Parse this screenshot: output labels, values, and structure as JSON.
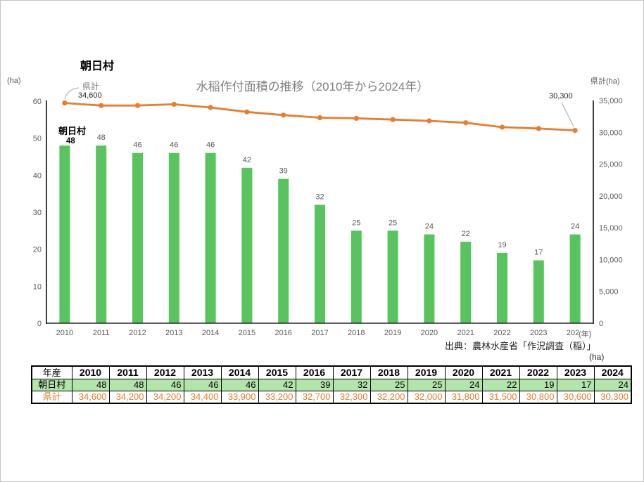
{
  "page": {
    "title": "朝日村",
    "chart_title": "水稲作付面積の推移（2010年から2024年）",
    "left_axis_unit": "(ha)",
    "right_axis_unit": "県計(ha)",
    "x_axis_unit": "(年)",
    "source": "出典：農林水産省「作況調査（稲）」",
    "table_unit": "(ha)"
  },
  "chart_data": {
    "type": "bar",
    "title": "水稲作付面積の推移（2010年から2024年）",
    "categories": [
      "2010",
      "2011",
      "2012",
      "2013",
      "2014",
      "2015",
      "2016",
      "2017",
      "2018",
      "2019",
      "2020",
      "2021",
      "2022",
      "2023",
      "2024"
    ],
    "series": [
      {
        "name": "朝日村",
        "type": "bar",
        "axis": "left",
        "color": "#58c45e",
        "values": [
          48,
          48,
          46,
          46,
          46,
          42,
          39,
          32,
          25,
          25,
          24,
          22,
          19,
          17,
          24
        ]
      },
      {
        "name": "県計",
        "type": "line",
        "axis": "right",
        "color": "#e87d2e",
        "values": [
          34600,
          34200,
          34200,
          34400,
          33900,
          33200,
          32700,
          32300,
          32200,
          32000,
          31800,
          31500,
          30800,
          30600,
          30300
        ]
      }
    ],
    "left_axis": {
      "min": 0,
      "max": 60,
      "step": 10,
      "unit": "(ha)"
    },
    "right_axis": {
      "min": 0,
      "max": 35000,
      "step": 5000,
      "unit": "県計(ha)"
    },
    "annotations": {
      "line_series_label": "県計",
      "line_first_value": "34,600",
      "line_last_value": "30,300",
      "bar_series_label": "朝日村",
      "bar_first_value": "48"
    }
  },
  "table": {
    "corner_label": "年産",
    "years": [
      "2010",
      "2011",
      "2012",
      "2013",
      "2014",
      "2015",
      "2016",
      "2017",
      "2018",
      "2019",
      "2020",
      "2021",
      "2022",
      "2023",
      "2024"
    ],
    "rows": [
      {
        "label": "朝日村",
        "values": [
          48,
          48,
          46,
          46,
          46,
          42,
          39,
          32,
          25,
          25,
          24,
          22,
          19,
          17,
          24
        ],
        "style": "green"
      },
      {
        "label": "県計",
        "values": [
          34600,
          34200,
          34200,
          34400,
          33900,
          33200,
          32700,
          32300,
          32200,
          32000,
          31800,
          31500,
          30800,
          30600,
          30300
        ],
        "style": "orange"
      }
    ]
  },
  "colors": {
    "bar": "#58c45e",
    "line": "#e87d2e",
    "tick_text": "#595959",
    "title_text": "#7f7f7f",
    "axis_line": "#262626",
    "table_row_green": "#b2e5aa",
    "table_orange_text": "#e87d2e",
    "annotation_leader": "#a6a6a6"
  }
}
